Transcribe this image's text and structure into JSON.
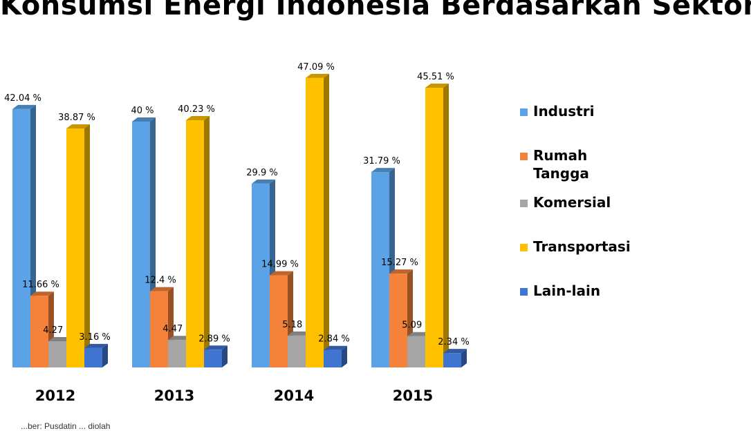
{
  "chart_data": {
    "type": "bar",
    "title": "Konsumsi Energi Indonesia Berdasarkan Sektor",
    "categories": [
      "2012",
      "2013",
      "2014",
      "2015"
    ],
    "series": [
      {
        "name": "Industri",
        "color": "#5ba3e6",
        "values": [
          42.04,
          40,
          29.9,
          31.79
        ],
        "labels": [
          "42.04 %",
          "40 %",
          "29.9 %",
          "31.79 %"
        ]
      },
      {
        "name": "Rumah Tangga",
        "color": "#f4823a",
        "values": [
          11.66,
          12.4,
          14.99,
          15.27
        ],
        "labels": [
          "11.66 %",
          "12.4 %",
          "14.99 %",
          "15.27 %"
        ]
      },
      {
        "name": "Komersial",
        "color": "#a5a5a5",
        "values": [
          4.27,
          4.47,
          5.18,
          5.09
        ],
        "labels": [
          "4.27 %",
          "4.47 %",
          "5.18 %",
          "5.09 %"
        ]
      },
      {
        "name": "Transportasi",
        "color": "#ffc000",
        "values": [
          38.87,
          40.23,
          47.09,
          45.51
        ],
        "labels": [
          "38.87 %",
          "40.23 %",
          "47.09 %",
          "45.51 %"
        ]
      },
      {
        "name": "Lain-lain",
        "color": "#3f74d1",
        "values": [
          3.16,
          2.89,
          2.84,
          2.34
        ],
        "labels": [
          "3.16 %",
          "2.89 %",
          "2.84 %",
          "2.34 %"
        ]
      }
    ],
    "ylim": [
      0,
      50
    ],
    "grid": false,
    "legend": "right",
    "bar_style": "3d"
  },
  "source_note": "...ber: Pusdatin ... diolah"
}
